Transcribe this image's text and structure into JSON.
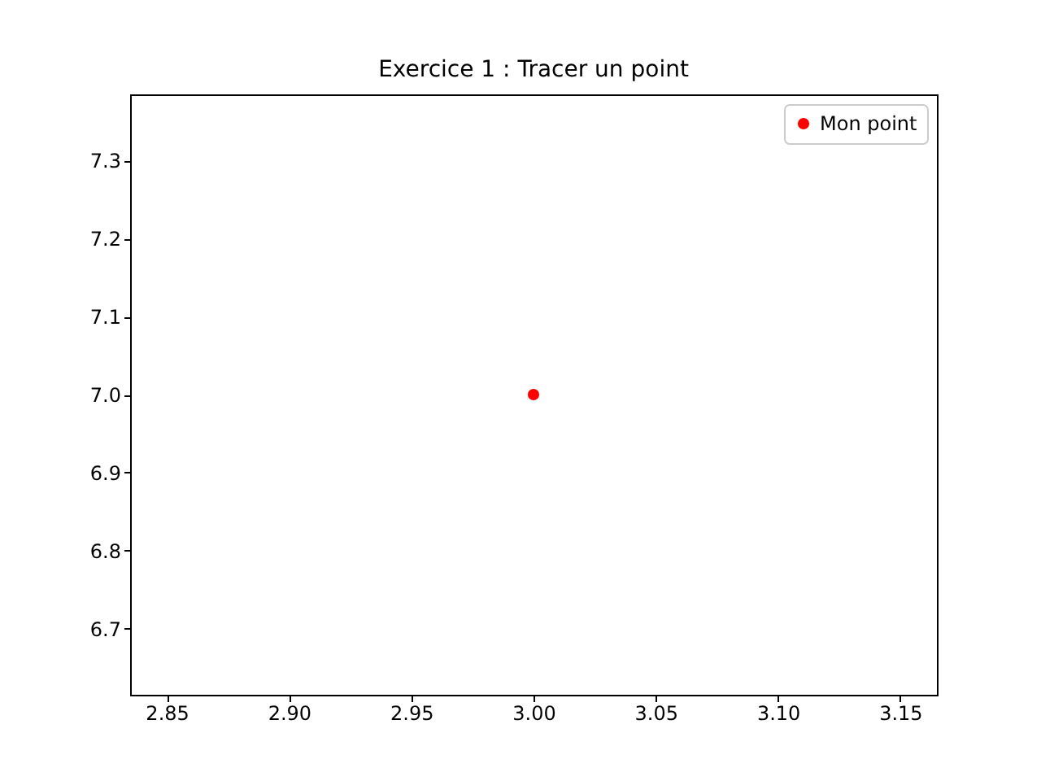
{
  "chart_data": {
    "type": "scatter",
    "title": "Exercice 1 : Tracer un point",
    "x": [
      3
    ],
    "series": [
      {
        "name": "Mon point",
        "color": "#ff0000",
        "values": [
          7
        ]
      }
    ],
    "xlim": [
      2.835,
      3.165
    ],
    "ylim": [
      6.615,
      7.385
    ],
    "xticks": [
      2.85,
      {
        "value": 2.9,
        "label": "2.90"
      },
      2.95,
      {
        "value": 3,
        "label": "3.00"
      },
      3.05,
      {
        "value": 3.1,
        "label": "3.10"
      },
      3.15
    ],
    "yticks": [
      6.7,
      6.8,
      6.9,
      {
        "value": 7,
        "label": "7.0"
      },
      7.1,
      7.2,
      7.3
    ],
    "marker": "circle",
    "grid": false,
    "legend": "top right"
  }
}
